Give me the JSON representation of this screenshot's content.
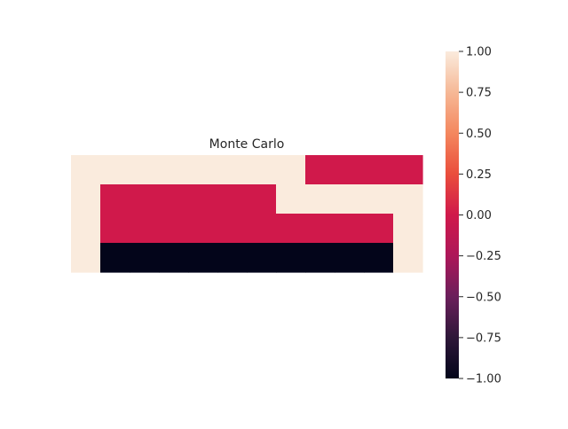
{
  "chart_data": {
    "type": "heatmap",
    "title": "Monte Carlo",
    "xlabel": "",
    "ylabel": "",
    "rows": 4,
    "cols": 12,
    "values": [
      [
        1,
        1,
        1,
        1,
        1,
        1,
        1,
        1,
        0,
        0,
        0,
        0
      ],
      [
        1,
        0,
        0,
        0,
        0,
        0,
        0,
        1,
        1,
        1,
        1,
        1
      ],
      [
        1,
        0,
        0,
        0,
        0,
        0,
        0,
        0,
        0,
        0,
        0,
        1
      ],
      [
        1,
        -1,
        -1,
        -1,
        -1,
        -1,
        -1,
        -1,
        -1,
        -1,
        -1,
        1
      ]
    ],
    "colorbar": {
      "min": -1.0,
      "max": 1.0,
      "ticks": [
        -1.0,
        -0.75,
        -0.5,
        -0.25,
        0.0,
        0.25,
        0.5,
        0.75,
        1.0
      ],
      "tick_labels": [
        "−1.00",
        "−0.75",
        "−0.50",
        "−0.25",
        "0.00",
        "0.25",
        "0.50",
        "0.75",
        "1.00"
      ],
      "colormap": "rocket"
    },
    "grid": false,
    "axes_visible": false
  }
}
